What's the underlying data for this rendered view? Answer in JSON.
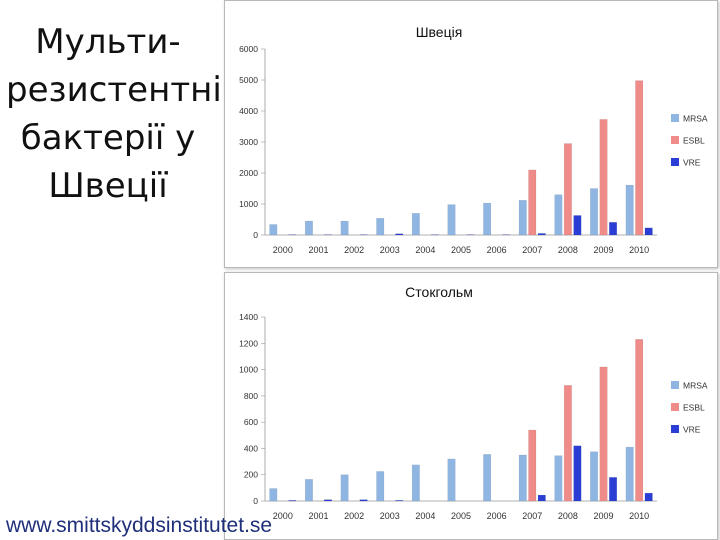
{
  "slide": {
    "title": "Мульти-\nрезистентні\nбактерії у\nШвеції",
    "footer": "www.smittskyddsinstitutet.se"
  },
  "colors": {
    "MRSA": "#8fb6e3",
    "ESBL": "#ef8c8a",
    "VRE": "#2a3ed6"
  },
  "chart_data": [
    {
      "type": "bar",
      "title": "Швеція",
      "categories": [
        "2000",
        "2001",
        "2002",
        "2003",
        "2004",
        "2005",
        "2006",
        "2007",
        "2008",
        "2009",
        "2010"
      ],
      "series": [
        {
          "name": "MRSA",
          "values": [
            340,
            450,
            450,
            540,
            700,
            980,
            1030,
            1120,
            1300,
            1500,
            1610
          ]
        },
        {
          "name": "ESBL",
          "values": [
            0,
            0,
            0,
            0,
            0,
            0,
            0,
            2100,
            2950,
            3730,
            4980
          ]
        },
        {
          "name": "VRE",
          "values": [
            10,
            10,
            10,
            40,
            10,
            10,
            10,
            50,
            630,
            410,
            230
          ]
        }
      ],
      "ylim": [
        0,
        6000
      ],
      "yticks": [
        "0",
        "1000",
        "2000",
        "3000",
        "4000",
        "5000",
        "6000"
      ],
      "legend": "right",
      "grid": false
    },
    {
      "type": "bar",
      "title": "Стокгольм",
      "categories": [
        "2000",
        "2001",
        "2002",
        "2003",
        "2004",
        "2005",
        "2006",
        "2007",
        "2008",
        "2009",
        "2010"
      ],
      "series": [
        {
          "name": "MRSA",
          "values": [
            95,
            165,
            200,
            225,
            275,
            320,
            355,
            350,
            345,
            375,
            410
          ]
        },
        {
          "name": "ESBL",
          "values": [
            0,
            0,
            0,
            0,
            0,
            0,
            0,
            540,
            880,
            1020,
            1230
          ]
        },
        {
          "name": "VRE",
          "values": [
            5,
            10,
            10,
            5,
            0,
            0,
            0,
            45,
            420,
            180,
            60
          ]
        }
      ],
      "ylim": [
        0,
        1400
      ],
      "yticks": [
        "0",
        "200",
        "400",
        "600",
        "800",
        "1000",
        "1200",
        "1400"
      ],
      "legend": "right",
      "grid": false
    }
  ]
}
